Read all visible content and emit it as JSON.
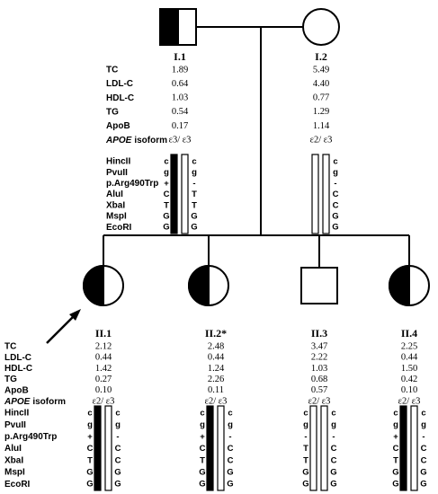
{
  "lipid_labels": [
    "TC",
    "LDL-C",
    "HDL-C",
    "TG",
    "ApoB"
  ],
  "apoe_label": {
    "gene": "APOE",
    "word": "isoform"
  },
  "marker_labels": [
    "HincII",
    "PvuII",
    "p.Arg490Trp",
    "AluI",
    "XbaI",
    "MspI",
    "EcoRI"
  ],
  "individuals": [
    {
      "id": "I.1",
      "lipids": [
        "1.89",
        "0.64",
        "1.03",
        "0.54",
        "0.17",
        "ε3/ ε3"
      ],
      "left_alleles": [
        "c",
        "g",
        "+",
        "C",
        "T",
        "G",
        "G"
      ],
      "right_alleles": [
        "c",
        "g",
        "-",
        "T",
        "T",
        "G",
        "G"
      ]
    },
    {
      "id": "I.2",
      "lipids": [
        "5.49",
        "4.40",
        "0.77",
        "1.29",
        "1.14",
        "ε2/ ε3"
      ],
      "right_alleles": [
        "c",
        "g",
        "-",
        "C",
        "C",
        "G",
        "G"
      ]
    },
    {
      "id": "II.1",
      "lipids": [
        "2.12",
        "0.44",
        "1.42",
        "0.27",
        "0.10",
        "ε2/ ε3"
      ],
      "left_alleles": [
        "c",
        "g",
        "+",
        "C",
        "T",
        "G",
        "G"
      ],
      "right_alleles": [
        "c",
        "g",
        "-",
        "C",
        "C",
        "G",
        "G"
      ]
    },
    {
      "id": "II.2*",
      "lipids": [
        "2.48",
        "0.44",
        "1.24",
        "2.26",
        "0.11",
        "ε2/ ε3"
      ],
      "left_alleles": [
        "c",
        "g",
        "+",
        "C",
        "T",
        "G",
        "G"
      ],
      "right_alleles": [
        "c",
        "g",
        "-",
        "C",
        "C",
        "G",
        "G"
      ]
    },
    {
      "id": "II.3",
      "lipids": [
        "3.47",
        "2.22",
        "1.03",
        "0.68",
        "0.57",
        "ε2/ ε3"
      ],
      "left_alleles": [
        "c",
        "g",
        "-",
        "T",
        "T",
        "G",
        "G"
      ],
      "right_alleles": [
        "c",
        "g",
        "-",
        "C",
        "C",
        "G",
        "G"
      ]
    },
    {
      "id": "II.4",
      "lipids": [
        "2.25",
        "0.44",
        "1.50",
        "0.42",
        "0.10",
        "ε2/ ε3"
      ],
      "left_alleles": [
        "c",
        "g",
        "+",
        "C",
        "T",
        "G",
        "G"
      ],
      "right_alleles": [
        "c",
        "g",
        "-",
        "C",
        "C",
        "G",
        "G"
      ]
    }
  ]
}
